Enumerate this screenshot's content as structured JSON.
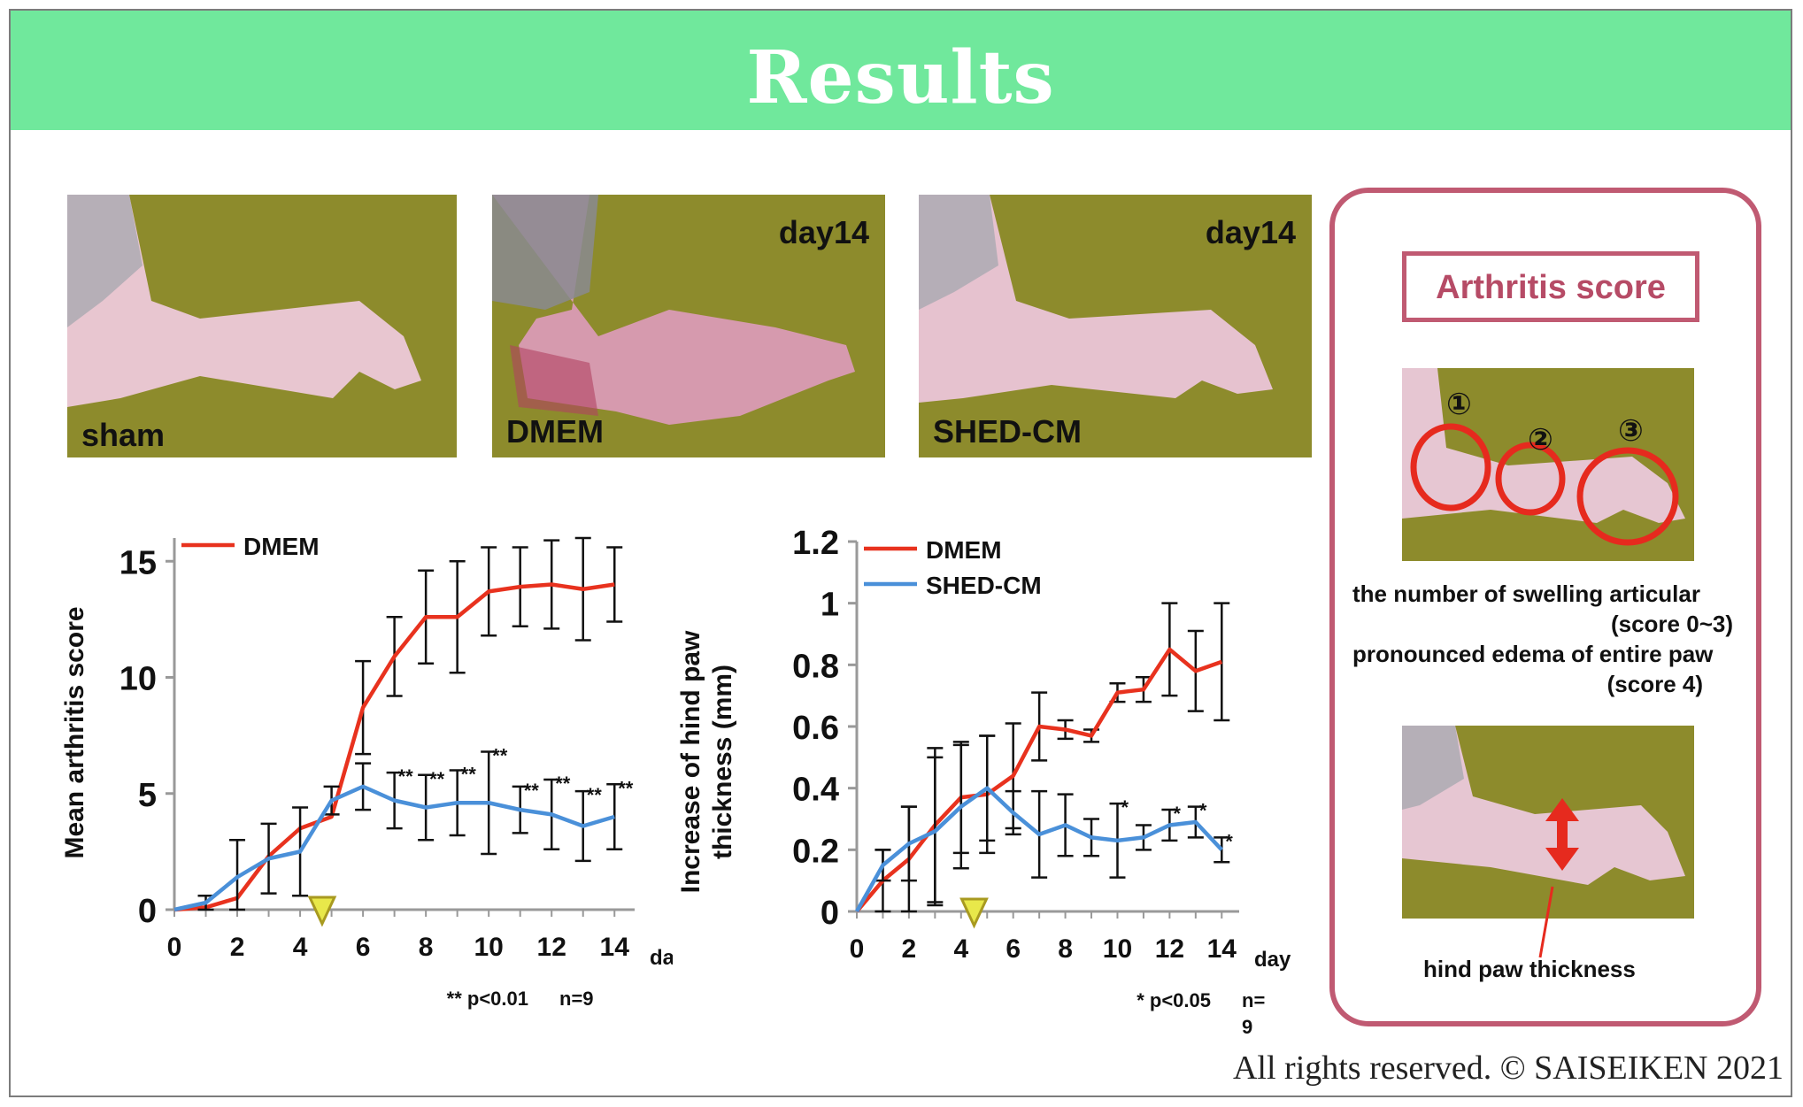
{
  "header": {
    "title": "Results"
  },
  "photos": [
    {
      "label": "sham",
      "day": ""
    },
    {
      "label": "DMEM",
      "day": "day14"
    },
    {
      "label": "SHED-CM",
      "day": "day14"
    }
  ],
  "score_panel": {
    "title": "Arthritis score",
    "joint_markers": [
      "①",
      "②",
      "③"
    ],
    "line1": "the number of swelling articular",
    "line2": "(score 0~3)",
    "line3": "pronounced edema of entire paw",
    "line4": "(score 4)",
    "thickness_label": "hind paw thickness"
  },
  "footer": "All rights reserved. © SAISEIKEN  2021",
  "colors": {
    "dmem": "#e8321e",
    "shed": "#4a90d9",
    "header": "#70e89c",
    "panel_border": "#c05a72",
    "marker": "#e8e84a"
  },
  "chart_data": [
    {
      "type": "line",
      "ylabel": "Mean arthritis score",
      "xlabel": "day",
      "ylim": [
        0,
        16
      ],
      "yticks": [
        0,
        5,
        10,
        15
      ],
      "xlim": [
        0,
        14.5
      ],
      "xticks": [
        0,
        2,
        4,
        6,
        8,
        10,
        12,
        14
      ],
      "treatment_marker_day": 4.7,
      "legend": [
        "DMEM"
      ],
      "footnote_sig": "** p<0.01",
      "footnote_n": "n=9",
      "series": [
        {
          "name": "DMEM",
          "color": "#e8321e",
          "x": [
            0,
            1,
            2,
            3,
            4,
            5,
            6,
            7,
            8,
            9,
            10,
            11,
            12,
            13,
            14
          ],
          "y": [
            0,
            0.1,
            0.5,
            2.3,
            3.5,
            4.0,
            8.7,
            10.9,
            12.6,
            12.6,
            13.7,
            13.9,
            14.0,
            13.8,
            14.0
          ],
          "err": [
            0,
            0,
            0,
            0,
            0,
            0,
            2.0,
            1.7,
            2.0,
            2.4,
            1.9,
            1.7,
            1.9,
            2.2,
            1.6
          ]
        },
        {
          "name": "",
          "color": "#4a90d9",
          "x": [
            0,
            1,
            2,
            3,
            4,
            5,
            6,
            7,
            8,
            9,
            10,
            11,
            12,
            13,
            14
          ],
          "y": [
            0,
            0.3,
            1.4,
            2.2,
            2.5,
            4.7,
            5.3,
            4.7,
            4.4,
            4.6,
            4.6,
            4.3,
            4.1,
            3.6,
            4.0
          ],
          "err": [
            0,
            0.3,
            1.6,
            1.5,
            1.9,
            0.6,
            1.0,
            1.2,
            1.4,
            1.4,
            2.2,
            1.0,
            1.5,
            1.5,
            1.4
          ]
        }
      ],
      "annotations": [
        {
          "x": 7,
          "text": "**"
        },
        {
          "x": 8,
          "text": "**"
        },
        {
          "x": 9,
          "text": "**"
        },
        {
          "x": 10,
          "text": "**"
        },
        {
          "x": 11,
          "text": "**"
        },
        {
          "x": 12,
          "text": "**"
        },
        {
          "x": 13,
          "text": "**"
        },
        {
          "x": 14,
          "text": "**"
        }
      ]
    },
    {
      "type": "line",
      "ylabel": "Increase of hind paw thickness (mm)",
      "ylabel_lines": [
        "Increase of hind paw",
        "thickness (mm)"
      ],
      "xlabel": "day",
      "ylim": [
        0,
        1.2
      ],
      "yticks": [
        0,
        0.2,
        0.4,
        0.6,
        0.8,
        1,
        1.2
      ],
      "ytick_labels": [
        "0",
        "0.2",
        "0.4",
        "0.6",
        "0.8",
        "1",
        "1.2"
      ],
      "xlim": [
        0,
        14.5
      ],
      "xticks": [
        0,
        2,
        4,
        6,
        8,
        10,
        12,
        14
      ],
      "treatment_marker_day": 4.5,
      "legend": [
        "DMEM",
        "SHED-CM"
      ],
      "footnote_sig": "* p<0.05",
      "footnote_n": "n=\n9",
      "series": [
        {
          "name": "DMEM",
          "color": "#e8321e",
          "x": [
            0,
            1,
            2,
            3,
            4,
            5,
            6,
            7,
            8,
            9,
            10,
            11,
            12,
            13,
            14
          ],
          "y": [
            0,
            0.1,
            0.17,
            0.28,
            0.37,
            0.38,
            0.44,
            0.6,
            0.59,
            0.57,
            0.71,
            0.72,
            0.85,
            0.78,
            0.81
          ],
          "err": [
            0,
            0.1,
            0.17,
            0.25,
            0.18,
            0.19,
            0.17,
            0.11,
            0.03,
            0.02,
            0.03,
            0.04,
            0.15,
            0.13,
            0.19
          ]
        },
        {
          "name": "SHED-CM",
          "color": "#4a90d9",
          "x": [
            0,
            1,
            2,
            3,
            4,
            5,
            6,
            7,
            8,
            9,
            10,
            11,
            12,
            13,
            14
          ],
          "y": [
            0,
            0.15,
            0.22,
            0.26,
            0.34,
            0.4,
            0.32,
            0.25,
            0.28,
            0.24,
            0.23,
            0.24,
            0.28,
            0.29,
            0.2
          ],
          "err": [
            0,
            0.05,
            0.12,
            0.24,
            0.2,
            0.17,
            0.07,
            0.14,
            0.1,
            0.06,
            0.12,
            0.04,
            0.05,
            0.05,
            0.04
          ]
        }
      ],
      "annotations": [
        {
          "x": 10,
          "text": "*"
        },
        {
          "x": 12,
          "text": "*"
        },
        {
          "x": 13,
          "text": "*"
        },
        {
          "x": 14,
          "text": "*"
        }
      ]
    }
  ]
}
